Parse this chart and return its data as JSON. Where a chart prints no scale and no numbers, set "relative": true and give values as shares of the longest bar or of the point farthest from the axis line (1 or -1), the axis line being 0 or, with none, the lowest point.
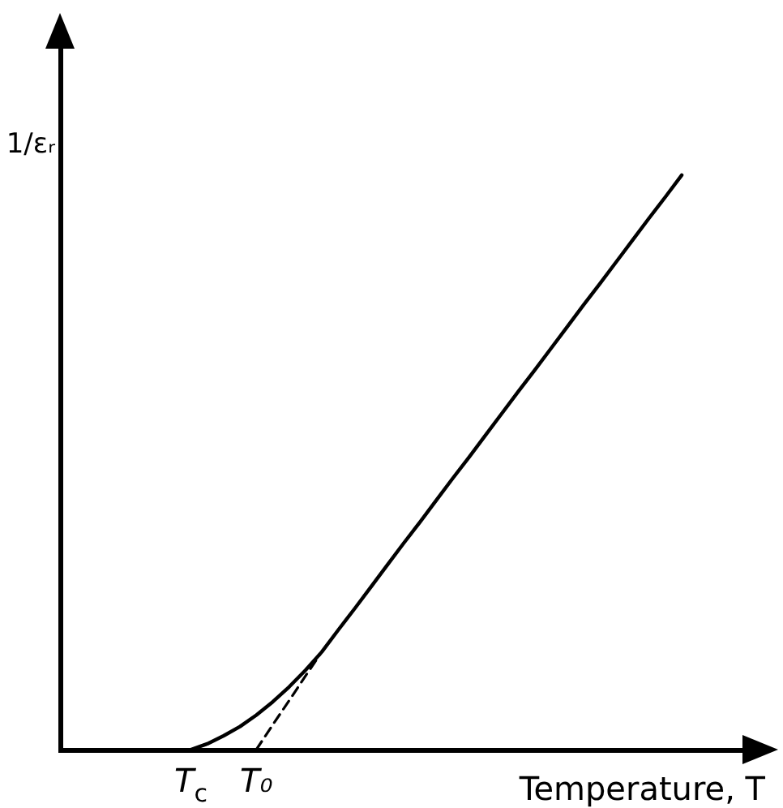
{
  "chart_data": {
    "type": "line",
    "xlabel": "Temperature, T",
    "ylabel": "1/εᵣ",
    "relative": true,
    "categories": [
      null,
      null,
      null,
      null,
      null,
      null,
      null,
      null,
      "T$_{c}$",
      null,
      null,
      null,
      "T₀",
      null,
      null,
      null,
      null,
      null,
      null,
      null,
      null,
      null,
      null,
      null,
      null,
      null,
      null,
      null,
      null,
      null,
      null,
      null,
      null,
      null,
      null,
      null,
      null,
      null,
      null,
      null,
      null,
      null,
      null,
      null
    ],
    "tick_labels": "x",
    "grid": false,
    "legend": false,
    "marker": "none",
    "line_style": "solid",
    "series": [
      {
        "color": "#000000",
        "values": [
          null,
          null,
          null,
          null,
          null,
          null,
          null,
          null,
          0,
          0.01,
          0.024,
          0.04,
          0.06,
          0.083,
          0.109,
          0.138,
          0.17,
          0.208,
          0.245,
          0.283,
          0.321,
          0.359,
          0.396,
          0.434,
          0.472,
          0.509,
          0.547,
          0.585,
          0.623,
          0.66,
          0.698,
          0.736,
          0.774,
          0.811,
          0.849,
          0.887,
          0.925,
          0.962,
          1,
          null,
          null,
          null,
          null,
          null
        ]
      },
      {
        "color": "#000000",
        "line_style": "dashed",
        "values": [
          null,
          null,
          null,
          null,
          null,
          null,
          null,
          null,
          null,
          null,
          null,
          null,
          0,
          0.043,
          0.085,
          0.128,
          0.17,
          null,
          null,
          null,
          null,
          null,
          null,
          null,
          null,
          null,
          null,
          null,
          null,
          null,
          null,
          null,
          null,
          null,
          null,
          null,
          null,
          null,
          null,
          null,
          null,
          null,
          null,
          null
        ]
      }
    ]
  }
}
